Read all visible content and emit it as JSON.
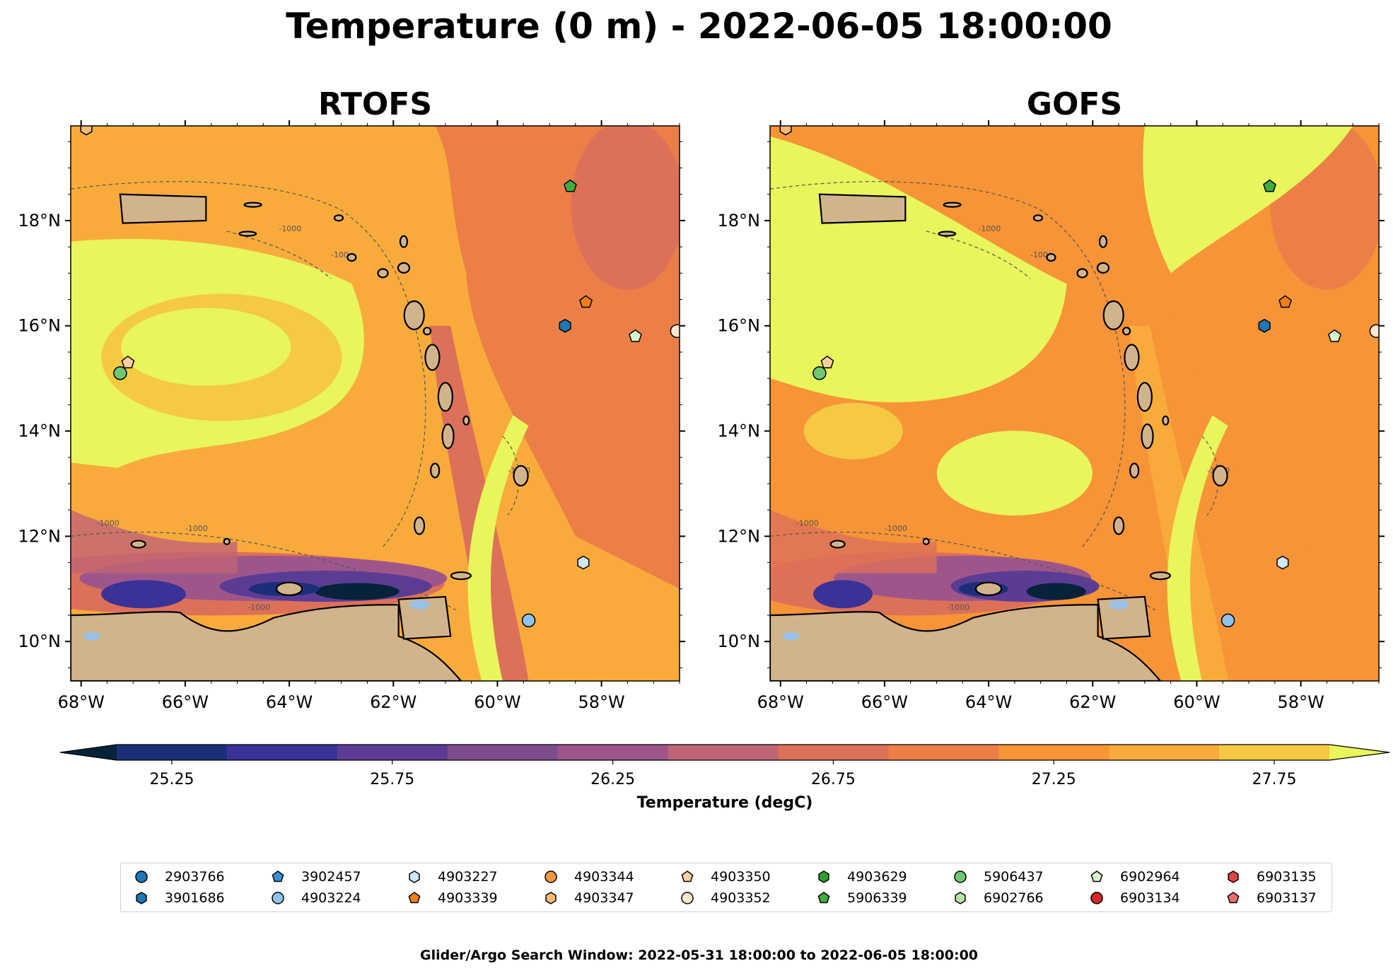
{
  "suptitle": "Temperature (0 m) - 2022-06-05 18:00:00",
  "footer": "Glider/Argo Search Window: 2022-05-31 18:00:00 to 2022-06-05 18:00:00",
  "colors": {
    "land": "#d2b48c",
    "water_bodies": "#9ac1e6",
    "colormap": [
      "#06233a",
      "#1b2e78",
      "#3a3296",
      "#5b3c95",
      "#7d4c8f",
      "#9e568a",
      "#c06476",
      "#dd7058",
      "#ec7f47",
      "#f69437",
      "#f8ab3b",
      "#f5c941",
      "#e8f55b"
    ]
  },
  "chart_data": [
    {
      "type": "heatmap",
      "title": "RTOFS",
      "xlim": [
        -68.2,
        -56.5
      ],
      "ylim": [
        9.25,
        19.8
      ],
      "xticks": [
        "68°W",
        "66°W",
        "64°W",
        "62°W",
        "60°W",
        "58°W"
      ],
      "xtick_values": [
        -68,
        -66,
        -64,
        -62,
        -60,
        -58
      ],
      "yticks": [
        "10°N",
        "12°N",
        "14°N",
        "16°N",
        "18°N"
      ],
      "ytick_values": [
        10,
        12,
        14,
        16,
        18
      ],
      "contour_labels": [
        "-1000",
        "-100"
      ]
    },
    {
      "type": "heatmap",
      "title": "GOFS",
      "xlim": [
        -68.2,
        -56.5
      ],
      "ylim": [
        9.25,
        19.8
      ],
      "xticks": [
        "68°W",
        "66°W",
        "64°W",
        "62°W",
        "60°W",
        "58°W"
      ],
      "xtick_values": [
        -68,
        -66,
        -64,
        -62,
        -60,
        -58
      ],
      "yticks": [
        "10°N",
        "12°N",
        "14°N",
        "16°N",
        "18°N"
      ],
      "ytick_values": [
        10,
        12,
        14,
        16,
        18
      ],
      "contour_labels": [
        "-1000",
        "-100"
      ]
    }
  ],
  "colorbar": {
    "label": "Temperature (degC)",
    "levels": [
      25.125,
      25.25,
      25.375,
      25.5,
      25.625,
      25.75,
      25.875,
      26.0,
      26.125,
      26.25,
      26.375,
      26.5,
      26.625,
      26.75,
      26.875,
      27.0,
      27.125,
      27.25,
      27.375,
      27.5,
      27.625,
      27.75,
      27.875
    ],
    "ticks": [
      "25.25",
      "25.75",
      "26.25",
      "26.75",
      "27.25",
      "27.75"
    ],
    "tick_values": [
      25.25,
      25.75,
      26.25,
      26.75,
      27.25,
      27.75
    ],
    "range": [
      25.125,
      27.875
    ],
    "extend": "both"
  },
  "legend": {
    "items": [
      {
        "id": "2903766",
        "marker": "circle",
        "color": "#1f77b4"
      },
      {
        "id": "3901686",
        "marker": "hexagon",
        "color": "#1f77b4"
      },
      {
        "id": "3902457",
        "marker": "pentagon",
        "color": "#3c8fd6"
      },
      {
        "id": "4903224",
        "marker": "circle",
        "color": "#8ec3ec"
      },
      {
        "id": "4903227",
        "marker": "hexagon",
        "color": "#cfe7f8"
      },
      {
        "id": "4903339",
        "marker": "pentagon",
        "color": "#f07f16"
      },
      {
        "id": "4903344",
        "marker": "circle",
        "color": "#f59640"
      },
      {
        "id": "4903347",
        "marker": "hexagon",
        "color": "#f8b877"
      },
      {
        "id": "4903350",
        "marker": "pentagon",
        "color": "#fbd3a2"
      },
      {
        "id": "4903352",
        "marker": "circle",
        "color": "#fde8d2"
      },
      {
        "id": "4903629",
        "marker": "hexagon",
        "color": "#2ca02c"
      },
      {
        "id": "5906339",
        "marker": "pentagon",
        "color": "#3fae3f"
      },
      {
        "id": "5906437",
        "marker": "circle",
        "color": "#72c872"
      },
      {
        "id": "6902766",
        "marker": "hexagon",
        "color": "#b4e6a8"
      },
      {
        "id": "6902964",
        "marker": "pentagon",
        "color": "#d7f4cc"
      },
      {
        "id": "6903134",
        "marker": "circle",
        "color": "#d62728"
      },
      {
        "id": "6903135",
        "marker": "hexagon",
        "color": "#e24444"
      },
      {
        "id": "6903137",
        "marker": "pentagon",
        "color": "#ee6f6f"
      }
    ]
  },
  "floats": [
    {
      "id": "5906437",
      "lon": -67.25,
      "lat": 15.1
    },
    {
      "id": "4903350",
      "lon": -67.1,
      "lat": 15.3
    },
    {
      "id": "4903347",
      "lon": -67.9,
      "lat": 19.75
    },
    {
      "id": "5906339",
      "lon": -58.6,
      "lat": 18.65
    },
    {
      "id": "4903339",
      "lon": -58.3,
      "lat": 16.45
    },
    {
      "id": "3901686",
      "lon": -58.7,
      "lat": 16.0
    },
    {
      "id": "6902964",
      "lon": -57.35,
      "lat": 15.8
    },
    {
      "id": "4903352",
      "lon": -56.55,
      "lat": 15.9
    },
    {
      "id": "4903227",
      "lon": -58.35,
      "lat": 11.5
    },
    {
      "id": "4903224",
      "lon": -59.4,
      "lat": 10.4
    }
  ]
}
